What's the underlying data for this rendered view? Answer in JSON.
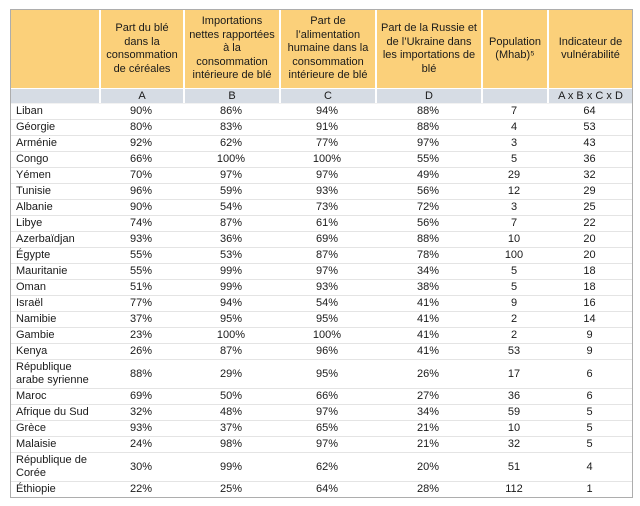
{
  "table": {
    "columns": [
      {
        "key": "country",
        "label": "",
        "sub": ""
      },
      {
        "key": "a",
        "label": "Part du blé dans la consommation de céréales",
        "sub": "A"
      },
      {
        "key": "b",
        "label": "Importations nettes rapportées à la consommation intérieure de blé",
        "sub": "B"
      },
      {
        "key": "c",
        "label": "Part de l’alimentation humaine dans la consommation intérieure de blé",
        "sub": "C"
      },
      {
        "key": "d",
        "label": "Part de la Russie et de l’Ukraine dans les importations de blé",
        "sub": "D"
      },
      {
        "key": "population",
        "label": "Population (Mhab)⁵",
        "sub": ""
      },
      {
        "key": "vulnerability",
        "label": "Indicateur de vulnérabilité",
        "sub": "A x B x C x D"
      }
    ],
    "rows": [
      [
        "Liban",
        "90%",
        "86%",
        "94%",
        "88%",
        "7",
        "64"
      ],
      [
        "Géorgie",
        "80%",
        "83%",
        "91%",
        "88%",
        "4",
        "53"
      ],
      [
        "Arménie",
        "92%",
        "62%",
        "77%",
        "97%",
        "3",
        "43"
      ],
      [
        "Congo",
        "66%",
        "100%",
        "100%",
        "55%",
        "5",
        "36"
      ],
      [
        "Yémen",
        "70%",
        "97%",
        "97%",
        "49%",
        "29",
        "32"
      ],
      [
        "Tunisie",
        "96%",
        "59%",
        "93%",
        "56%",
        "12",
        "29"
      ],
      [
        "Albanie",
        "90%",
        "54%",
        "73%",
        "72%",
        "3",
        "25"
      ],
      [
        "Libye",
        "74%",
        "87%",
        "61%",
        "56%",
        "7",
        "22"
      ],
      [
        "Azerbaïdjan",
        "93%",
        "36%",
        "69%",
        "88%",
        "10",
        "20"
      ],
      [
        "Égypte",
        "55%",
        "53%",
        "87%",
        "78%",
        "100",
        "20"
      ],
      [
        "Mauritanie",
        "55%",
        "99%",
        "97%",
        "34%",
        "5",
        "18"
      ],
      [
        "Oman",
        "51%",
        "99%",
        "93%",
        "38%",
        "5",
        "18"
      ],
      [
        "Israël",
        "77%",
        "94%",
        "54%",
        "41%",
        "9",
        "16"
      ],
      [
        "Namibie",
        "37%",
        "95%",
        "95%",
        "41%",
        "2",
        "14"
      ],
      [
        "Gambie",
        "23%",
        "100%",
        "100%",
        "41%",
        "2",
        "9"
      ],
      [
        "Kenya",
        "26%",
        "87%",
        "96%",
        "41%",
        "53",
        "9"
      ],
      [
        "République arabe syrienne",
        "88%",
        "29%",
        "95%",
        "26%",
        "17",
        "6"
      ],
      [
        "Maroc",
        "69%",
        "50%",
        "66%",
        "27%",
        "36",
        "6"
      ],
      [
        "Afrique du Sud",
        "32%",
        "48%",
        "97%",
        "34%",
        "59",
        "5"
      ],
      [
        "Grèce",
        "93%",
        "37%",
        "65%",
        "21%",
        "10",
        "5"
      ],
      [
        "Malaisie",
        "24%",
        "98%",
        "97%",
        "21%",
        "32",
        "5"
      ],
      [
        "République de Corée",
        "30%",
        "99%",
        "62%",
        "20%",
        "51",
        "4"
      ],
      [
        "Éthiopie",
        "22%",
        "25%",
        "64%",
        "28%",
        "112",
        "1"
      ]
    ],
    "colors": {
      "header_bg": "#FBD07A",
      "subheader_bg": "#D6DCE4",
      "table_border": "#ADADAD",
      "row_line": "#E4E4E4"
    }
  }
}
